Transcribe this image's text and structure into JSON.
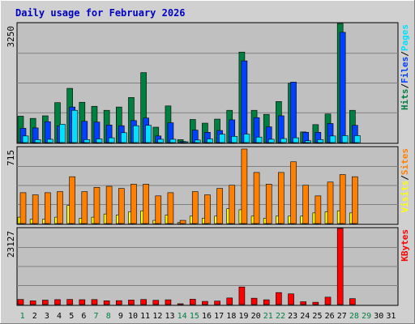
{
  "chart_data": {
    "title": "Daily usage for February 2026",
    "days": [
      "1",
      "2",
      "3",
      "4",
      "5",
      "6",
      "7",
      "8",
      "9",
      "10",
      "11",
      "12",
      "13",
      "14",
      "15",
      "16",
      "17",
      "18",
      "19",
      "20",
      "21",
      "22",
      "23",
      "24",
      "25",
      "26",
      "27",
      "28",
      "29",
      "30",
      "31"
    ],
    "weekend_days": [
      1,
      7,
      8,
      14,
      15,
      21,
      22,
      28,
      29
    ],
    "colors": {
      "hits": "#008040",
      "files": "#0040ff",
      "pages": "#00e0ff",
      "visits": "#ffff00",
      "sites": "#ff8000",
      "kbytes": "#ff0000",
      "title": "#0000c0",
      "weekend_day": "#008040",
      "weekday": "#000000",
      "panel_bg": "#c0c0c0",
      "outer_bg": "#d0d0d0"
    },
    "panels": [
      {
        "type": "bar",
        "scale_label": "3250",
        "ymax": 3250,
        "legend": [
          {
            "text": "Hits",
            "color_key": "hits"
          },
          {
            "text": "/",
            "color_key": "weekday"
          },
          {
            "text": "Files",
            "color_key": "files"
          },
          {
            "text": "/",
            "color_key": "weekday"
          },
          {
            "text": "Pages",
            "color_key": "pages"
          }
        ],
        "series": [
          {
            "name": "Hits",
            "color_key": "hits",
            "values": [
              720,
              660,
              730,
              1090,
              1480,
              1100,
              990,
              880,
              970,
              1230,
              1910,
              420,
              1000,
              80,
              630,
              530,
              640,
              880,
              2470,
              880,
              770,
              1120,
              1620,
              290,
              490,
              780,
              3250,
              880,
              null,
              null,
              null
            ]
          },
          {
            "name": "Files",
            "color_key": "files",
            "values": [
              390,
              400,
              570,
              450,
              970,
              580,
              560,
              480,
              460,
              600,
              670,
              180,
              540,
              30,
              340,
              280,
              330,
              620,
              2230,
              680,
              430,
              730,
              1650,
              280,
              280,
              520,
              3010,
              470,
              null,
              null,
              null
            ]
          },
          {
            "name": "Pages",
            "color_key": "pages",
            "values": [
              180,
              80,
              90,
              500,
              880,
              80,
              100,
              130,
              270,
              460,
              470,
              90,
              90,
              20,
              70,
              100,
              230,
              170,
              230,
              150,
              90,
              110,
              130,
              50,
              80,
              180,
              190,
              190,
              null,
              null,
              null
            ]
          }
        ]
      },
      {
        "type": "bar",
        "scale_label": "715",
        "ymax": 715,
        "legend": [
          {
            "text": "Visits",
            "color_key": "visits"
          },
          {
            "text": "/",
            "color_key": "weekday"
          },
          {
            "text": "Sites",
            "color_key": "sites"
          }
        ],
        "series": [
          {
            "name": "Visits",
            "color_key": "visits",
            "values": [
              60,
              40,
              40,
              60,
              170,
              50,
              60,
              90,
              80,
              110,
              120,
              30,
              80,
              10,
              70,
              50,
              70,
              140,
              130,
              70,
              50,
              70,
              70,
              70,
              100,
              110,
              120,
              100,
              null,
              null,
              null
            ]
          },
          {
            "name": "Sites",
            "color_key": "sites",
            "values": [
              290,
              270,
              290,
              300,
              440,
              300,
              340,
              350,
              330,
              370,
              370,
              260,
              290,
              30,
              300,
              270,
              330,
              360,
              700,
              480,
              370,
              480,
              580,
              360,
              260,
              390,
              460,
              440,
              null,
              null,
              null
            ]
          }
        ]
      },
      {
        "type": "bar",
        "scale_label": "23127",
        "ymax": 23127,
        "legend": [
          {
            "text": "KBytes",
            "color_key": "kbytes"
          }
        ],
        "series": [
          {
            "name": "KBytes",
            "color_key": "kbytes",
            "values": [
              1550,
              1120,
              1350,
              1500,
              1560,
              1480,
              1530,
              1150,
              1190,
              1370,
              1550,
              1300,
              1450,
              140,
              1620,
              970,
              1060,
              2000,
              5350,
              1930,
              1450,
              3650,
              3260,
              860,
              700,
              2250,
              23127,
              1800,
              null,
              null,
              null
            ]
          }
        ]
      }
    ]
  }
}
